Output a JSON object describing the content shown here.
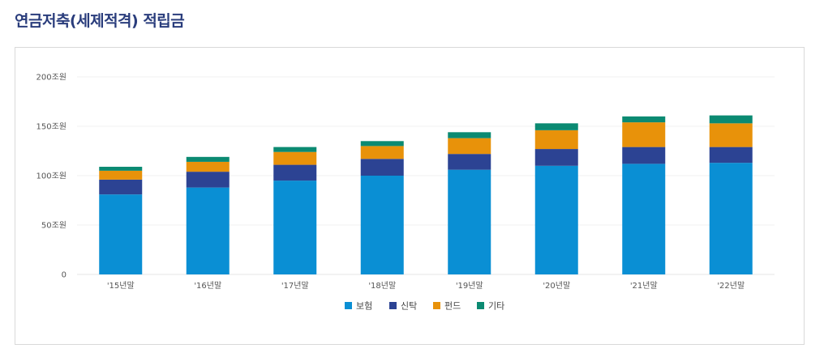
{
  "page": {
    "title": "연금저축(세제적격) 적립금"
  },
  "chart_data": {
    "type": "bar",
    "stacked": true,
    "title": "",
    "xlabel": "",
    "ylabel": "",
    "ylim": [
      0,
      200
    ],
    "y_ticks": [
      0,
      50,
      100,
      150,
      200
    ],
    "y_tick_labels": [
      "0",
      "50조원",
      "100조원",
      "150조원",
      "200조원"
    ],
    "grid": true,
    "legend_position": "bottom",
    "categories": [
      "'15년말",
      "'16년말",
      "'17년말",
      "'18년말",
      "'19년말",
      "'20년말",
      "'21년말",
      "'22년말"
    ],
    "series": [
      {
        "name": "보험",
        "color": "#0a8fd4",
        "values": [
          81,
          88,
          95,
          100,
          106,
          110,
          112,
          113
        ]
      },
      {
        "name": "신탁",
        "color": "#2c4393",
        "values": [
          15,
          16,
          16,
          17,
          16,
          17,
          17,
          16
        ]
      },
      {
        "name": "펀드",
        "color": "#e8920a",
        "values": [
          9,
          10,
          13,
          13,
          16,
          19,
          25,
          24
        ]
      },
      {
        "name": "기타",
        "color": "#0b8a72",
        "values": [
          4,
          5,
          5,
          5,
          6,
          7,
          6,
          8
        ]
      }
    ]
  }
}
